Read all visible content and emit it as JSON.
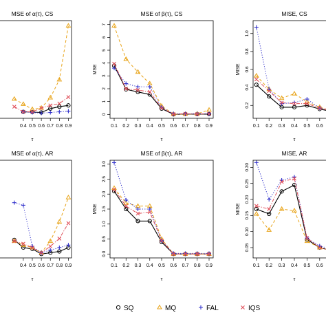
{
  "legend": {
    "placement": "bottom",
    "entries": [
      {
        "label": "SQ",
        "color": "#000000",
        "marker": "circle",
        "dash": "solid"
      },
      {
        "label": "MQ",
        "color": "#E8A317",
        "marker": "triangle",
        "dash": "dashed"
      },
      {
        "label": "FAL",
        "color": "#3333CC",
        "marker": "plus",
        "dash": "dotted"
      },
      {
        "label": "IQS",
        "color": "#E0505A",
        "marker": "cross",
        "dash": "dashdot"
      }
    ]
  },
  "chart_data": [
    {
      "type": "line",
      "title": "MSE of α(τ), CS",
      "xlabel": "τ",
      "ylabel": "",
      "x": [
        0.1,
        0.2,
        0.3,
        0.4,
        0.5,
        0.6,
        0.7,
        0.8,
        0.9
      ],
      "xticks": [
        "0.4",
        "0.5",
        "0.6",
        "0.7",
        "0.8",
        "0.9"
      ],
      "ylim": [
        0,
        7
      ],
      "yticks": [],
      "series": [
        {
          "name": "SQ",
          "values": [
            null,
            null,
            null,
            0.2,
            0.18,
            0.15,
            0.45,
            0.6,
            0.7
          ]
        },
        {
          "name": "MQ",
          "values": [
            null,
            null,
            1.2,
            0.8,
            0.4,
            0.5,
            1.3,
            2.7,
            6.9
          ]
        },
        {
          "name": "FAL",
          "values": [
            null,
            null,
            null,
            0.2,
            0.15,
            0.1,
            0.15,
            0.2,
            0.25
          ]
        },
        {
          "name": "IQS",
          "values": [
            null,
            null,
            0.6,
            0.2,
            0.2,
            0.5,
            0.7,
            0.85,
            1.35
          ]
        }
      ]
    },
    {
      "type": "line",
      "title": "MSE of β(τ), CS",
      "xlabel": "τ",
      "ylabel": "MSE",
      "x": [
        0.1,
        0.2,
        0.3,
        0.4,
        0.5,
        0.6,
        0.7,
        0.8,
        0.9
      ],
      "xticks": [
        "0.1",
        "0.2",
        "0.3",
        "0.4",
        "0.5",
        "0.6",
        "0.7",
        "0.8",
        "0.9"
      ],
      "ylim": [
        0,
        7
      ],
      "yticks": [
        "0",
        "1",
        "2",
        "3",
        "4",
        "5",
        "6",
        "7"
      ],
      "series": [
        {
          "name": "SQ",
          "values": [
            3.8,
            1.95,
            1.75,
            1.55,
            0.45,
            0.0,
            0.02,
            0.02,
            0.02
          ]
        },
        {
          "name": "MQ",
          "values": [
            6.9,
            4.3,
            3.3,
            2.4,
            0.65,
            0.02,
            0.02,
            0.05,
            0.35
          ]
        },
        {
          "name": "FAL",
          "values": [
            3.6,
            2.4,
            2.15,
            2.15,
            0.55,
            0.05,
            0.05,
            0.05,
            0.05
          ]
        },
        {
          "name": "IQS",
          "values": [
            3.95,
            2.0,
            1.9,
            1.75,
            0.5,
            0.02,
            0.05,
            0.02,
            0.05
          ]
        }
      ]
    },
    {
      "type": "line",
      "title": "MISE, CS",
      "xlabel": "τ",
      "ylabel": "MISE",
      "x": [
        0.1,
        0.2,
        0.3,
        0.4,
        0.5,
        0.6,
        0.7
      ],
      "xticks": [
        "0.1",
        "0.2",
        "0.3",
        "0.4",
        "0.5",
        "0.6"
      ],
      "ylim": [
        0.1,
        1.1
      ],
      "yticks": [
        "0.2",
        "0.4",
        "0.6",
        "0.8",
        "1.0"
      ],
      "series": [
        {
          "name": "SQ",
          "values": [
            0.43,
            0.3,
            0.18,
            0.18,
            0.2,
            0.16,
            0.13
          ]
        },
        {
          "name": "MQ",
          "values": [
            0.53,
            0.38,
            0.28,
            0.33,
            0.24,
            0.18,
            0.14
          ]
        },
        {
          "name": "FAL",
          "values": [
            1.07,
            0.38,
            0.22,
            0.23,
            0.27,
            0.17,
            0.14
          ]
        },
        {
          "name": "IQS",
          "values": [
            0.49,
            0.36,
            0.23,
            0.22,
            0.22,
            0.17,
            0.14
          ]
        }
      ]
    },
    {
      "type": "line",
      "title": "MSE of α(τ), AR",
      "xlabel": "τ",
      "ylabel": "",
      "x": [
        0.1,
        0.2,
        0.3,
        0.4,
        0.5,
        0.6,
        0.7,
        0.8,
        0.9
      ],
      "xticks": [
        "0.4",
        "0.5",
        "0.6",
        "0.7",
        "0.8",
        "0.9"
      ],
      "ylim": [
        0,
        7
      ],
      "yticks": [],
      "series": [
        {
          "name": "SQ",
          "values": [
            null,
            null,
            1.1,
            0.5,
            0.4,
            0.0,
            0.1,
            0.2,
            0.5
          ]
        },
        {
          "name": "MQ",
          "values": [
            null,
            null,
            1.0,
            0.7,
            0.5,
            0.1,
            1.0,
            2.5,
            4.4
          ]
        },
        {
          "name": "FAL",
          "values": [
            null,
            null,
            4.0,
            3.8,
            0.6,
            0.1,
            0.3,
            0.5,
            0.7
          ]
        },
        {
          "name": "IQS",
          "values": [
            null,
            null,
            1.0,
            0.8,
            0.5,
            0.1,
            0.6,
            1.2,
            2.4
          ]
        }
      ]
    },
    {
      "type": "line",
      "title": "MSE of β(τ), AR",
      "xlabel": "τ",
      "ylabel": "MSE",
      "x": [
        0.1,
        0.2,
        0.3,
        0.4,
        0.5,
        0.6,
        0.7,
        0.8,
        0.9
      ],
      "xticks": [
        "0.1",
        "0.2",
        "0.3",
        "0.4",
        "0.5",
        "0.6",
        "0.7",
        "0.8",
        "0.9"
      ],
      "ylim": [
        0,
        3.0
      ],
      "yticks": [
        "0.0",
        "0.5",
        "1.0",
        "1.5",
        "2.0",
        "2.5",
        "3.0"
      ],
      "series": [
        {
          "name": "SQ",
          "values": [
            2.1,
            1.5,
            1.1,
            1.1,
            0.4,
            0.0,
            0.0,
            0.0,
            0.0
          ]
        },
        {
          "name": "MQ",
          "values": [
            2.2,
            1.7,
            1.6,
            1.6,
            0.5,
            0.0,
            0.0,
            0.0,
            0.0
          ]
        },
        {
          "name": "FAL",
          "values": [
            3.05,
            1.8,
            1.5,
            1.5,
            0.45,
            0.02,
            0.02,
            0.02,
            0.02
          ]
        },
        {
          "name": "IQS",
          "values": [
            2.15,
            1.6,
            1.35,
            1.4,
            0.45,
            0.0,
            0.0,
            0.0,
            0.0
          ]
        }
      ]
    },
    {
      "type": "line",
      "title": "MISE, AR",
      "xlabel": "τ",
      "ylabel": "MISE",
      "x": [
        0.1,
        0.2,
        0.3,
        0.4,
        0.5,
        0.6,
        0.7
      ],
      "xticks": [
        "0.1",
        "0.2",
        "0.3",
        "0.4",
        "0.5",
        "0.6"
      ],
      "ylim": [
        0.03,
        0.31
      ],
      "yticks": [
        "0.05",
        "0.10",
        "0.15",
        "0.20",
        "0.25",
        "0.30"
      ],
      "series": [
        {
          "name": "SQ",
          "values": [
            0.17,
            0.155,
            0.225,
            0.245,
            0.075,
            0.05,
            0.04
          ]
        },
        {
          "name": "MQ",
          "values": [
            0.155,
            0.105,
            0.17,
            0.165,
            0.07,
            0.05,
            0.04
          ]
        },
        {
          "name": "FAL",
          "values": [
            0.315,
            0.2,
            0.26,
            0.27,
            0.08,
            0.055,
            0.045
          ]
        },
        {
          "name": "IQS",
          "values": [
            0.18,
            0.17,
            0.255,
            0.265,
            0.08,
            0.05,
            0.04
          ]
        }
      ]
    }
  ]
}
